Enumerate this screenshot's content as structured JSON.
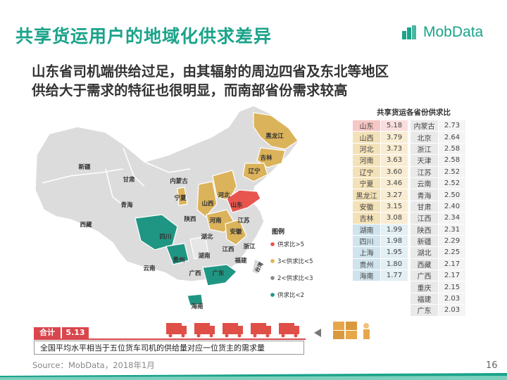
{
  "title": "共享货运用户的地域化供求差异",
  "logo_text": "MobData",
  "subtitle_lines": [
    "山东省司机端供给过足，由其辐射的周边四省及东北等地区",
    "供给大于需求的特征也很明显，而南部省份需求较高"
  ],
  "map": {
    "legend_title": "图例",
    "legend": [
      {
        "label": "供求比>5",
        "color": "#e8554e"
      },
      {
        "label": "3<供求比<5",
        "color": "#e2b24a"
      },
      {
        "label": "2<供求比<3",
        "color": "#888888"
      },
      {
        "label": "供求比<2",
        "color": "#1f9683"
      }
    ],
    "colors": {
      "high": "#e8554e",
      "mid": "#dbb35a",
      "low_mid": "#d8d8d8",
      "low": "#1f9683"
    },
    "labels": [
      "新疆",
      "西藏",
      "青海",
      "甘肃",
      "内蒙古",
      "宁夏",
      "陕西",
      "山西",
      "河北",
      "山东",
      "河南",
      "黑龙江",
      "吉林",
      "辽宁",
      "江苏",
      "安徽",
      "湖北",
      "四川",
      "贵州",
      "云南",
      "湖南",
      "江西",
      "浙江",
      "福建",
      "广西",
      "广东",
      "海南",
      "台湾"
    ]
  },
  "chart_data": {
    "type": "table",
    "title": "共享货运各省份供求比",
    "columns": [
      [
        {
          "province": "山东",
          "value": 5.18,
          "tier": "high"
        },
        {
          "province": "山西",
          "value": 3.79,
          "tier": "mid"
        },
        {
          "province": "河北",
          "value": 3.73,
          "tier": "mid"
        },
        {
          "province": "河南",
          "value": 3.63,
          "tier": "mid"
        },
        {
          "province": "辽宁",
          "value": 3.6,
          "tier": "mid"
        },
        {
          "province": "宁夏",
          "value": 3.46,
          "tier": "mid"
        },
        {
          "province": "黑龙江",
          "value": 3.27,
          "tier": "mid"
        },
        {
          "province": "安徽",
          "value": 3.15,
          "tier": "mid"
        },
        {
          "province": "吉林",
          "value": 3.08,
          "tier": "mid"
        },
        {
          "province": "湖南",
          "value": 1.99,
          "tier": "low"
        },
        {
          "province": "四川",
          "value": 1.98,
          "tier": "low"
        },
        {
          "province": "上海",
          "value": 1.95,
          "tier": "low"
        },
        {
          "province": "贵州",
          "value": 1.8,
          "tier": "low"
        },
        {
          "province": "海南",
          "value": 1.77,
          "tier": "low"
        }
      ],
      [
        {
          "province": "内蒙古",
          "value": 2.73
        },
        {
          "province": "北京",
          "value": 2.64
        },
        {
          "province": "浙江",
          "value": 2.58
        },
        {
          "province": "天津",
          "value": 2.58
        },
        {
          "province": "江苏",
          "value": 2.52
        },
        {
          "province": "云南",
          "value": 2.52
        },
        {
          "province": "青海",
          "value": 2.5
        },
        {
          "province": "甘肃",
          "value": 2.4
        },
        {
          "province": "江西",
          "value": 2.34
        },
        {
          "province": "陕西",
          "value": 2.31
        },
        {
          "province": "新疆",
          "value": 2.29
        },
        {
          "province": "湖北",
          "value": 2.25
        },
        {
          "province": "西藏",
          "value": 2.17
        },
        {
          "province": "广西",
          "value": 2.17
        },
        {
          "province": "重庆",
          "value": 2.15
        },
        {
          "province": "福建",
          "value": 2.03
        },
        {
          "province": "广东",
          "value": 2.03
        }
      ]
    ]
  },
  "summary": {
    "label": "合计",
    "value": "5.13",
    "text": "全国平均水平相当于五位货车司机的供给量对应一位货主的需求量"
  },
  "source": "Source：MobData，2018年1月",
  "page_number": "16"
}
